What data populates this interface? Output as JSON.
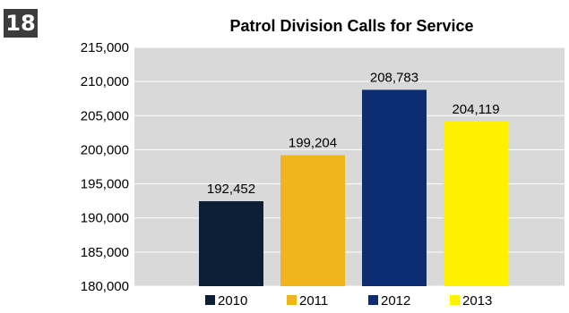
{
  "page_number": "18",
  "chart_data": {
    "type": "bar",
    "title": "Patrol Division Calls for Service",
    "xlabel": "",
    "ylabel": "",
    "categories": [
      "2010",
      "2011",
      "2012",
      "2013"
    ],
    "values": [
      192452,
      199204,
      208783,
      204119
    ],
    "value_labels": [
      "192,452",
      "199,204",
      "208,783",
      "204,119"
    ],
    "colors": [
      "#0d1f35",
      "#f0b41c",
      "#0c2d72",
      "#fff100"
    ],
    "ylim": [
      180000,
      215000
    ],
    "y_ticks": [
      180000,
      185000,
      190000,
      195000,
      200000,
      205000,
      210000,
      215000
    ],
    "y_tick_labels": [
      "180,000",
      "185,000",
      "190,000",
      "195,000",
      "200,000",
      "205,000",
      "210,000",
      "215,000"
    ],
    "grid": true,
    "legend": {
      "position": "bottom",
      "entries": [
        "2010",
        "2011",
        "2012",
        "2013"
      ]
    }
  }
}
